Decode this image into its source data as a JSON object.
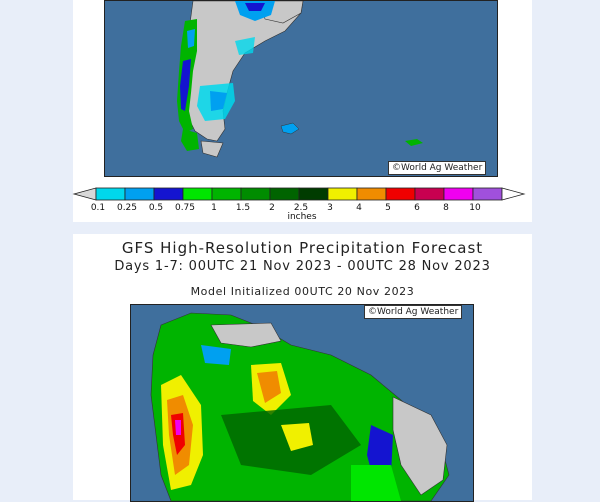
{
  "top_panel": {
    "copyright": "©World Ag Weather"
  },
  "legend": {
    "units": "inches",
    "bins": [
      {
        "label": "0.1",
        "color": "#00d8ec"
      },
      {
        "label": "0.25",
        "color": "#00a0f0"
      },
      {
        "label": "0.5",
        "color": "#1414d0"
      },
      {
        "label": "0.75",
        "color": "#00e600"
      },
      {
        "label": "1",
        "color": "#00b400"
      },
      {
        "label": "1.5",
        "color": "#008c00"
      },
      {
        "label": "2",
        "color": "#006400"
      },
      {
        "label": "2.5",
        "color": "#003c00"
      },
      {
        "label": "3",
        "color": "#f0f000"
      },
      {
        "label": "4",
        "color": "#f08c00"
      },
      {
        "label": "5",
        "color": "#f00000"
      },
      {
        "label": "6",
        "color": "#c80050"
      },
      {
        "label": "8",
        "color": "#f000f0"
      },
      {
        "label": "10",
        "color": "#a050dc"
      }
    ]
  },
  "bottom_panel": {
    "title": "GFS High-Resolution Precipitation Forecast",
    "subtitle": "Days 1-7: 00UTC 21 Nov 2023 - 00UTC 28 Nov 2023",
    "initialized": "Model Initialized 00UTC 20 Nov 2023",
    "copyright": "©World Ag Weather"
  },
  "colors": {
    "ocean": "#3f6f9d",
    "land_dry": "#c8c8c8",
    "page_bg": "#e8eef9"
  }
}
